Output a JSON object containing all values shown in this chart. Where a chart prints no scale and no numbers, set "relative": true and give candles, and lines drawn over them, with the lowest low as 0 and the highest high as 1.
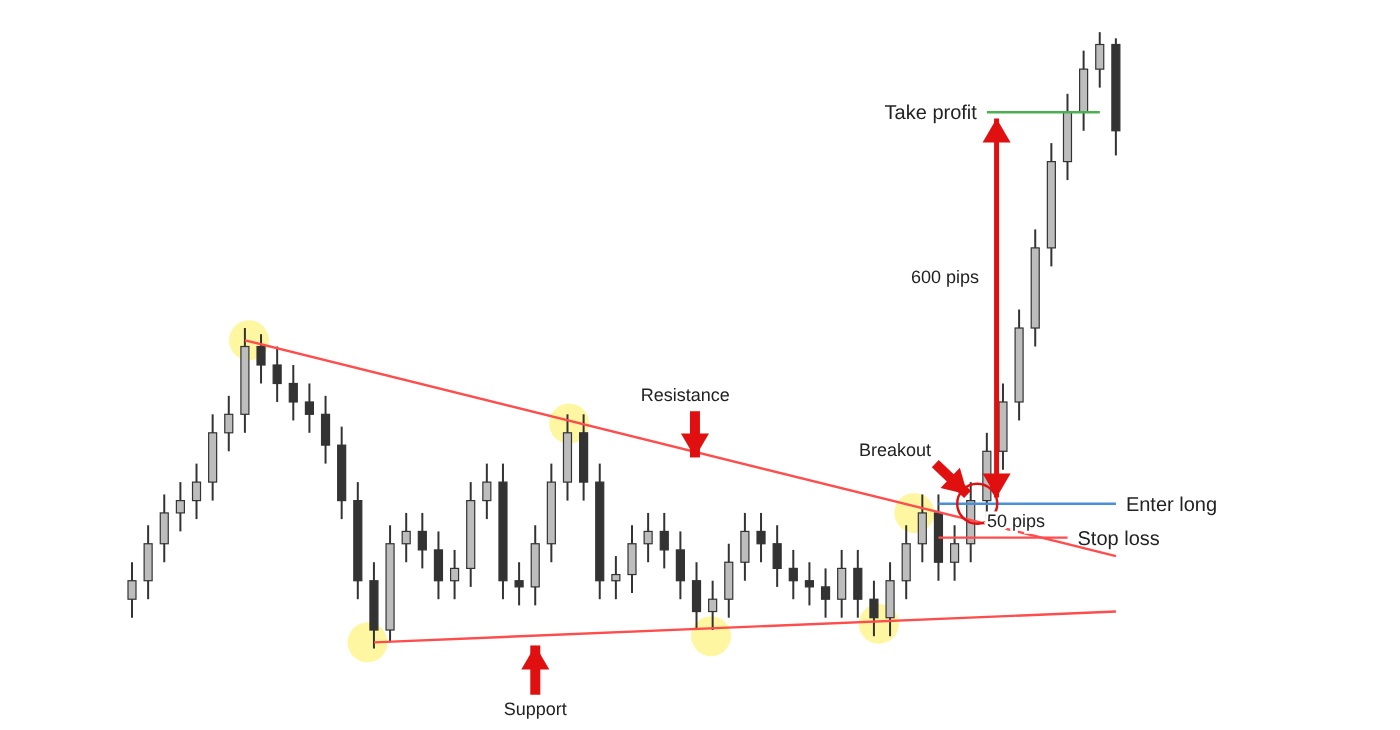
{
  "chart_data": {
    "type": "candlestick",
    "relative": true,
    "tick_labels": false,
    "color": "#333333",
    "categories": [
      null,
      null,
      null,
      null,
      null,
      null,
      null,
      null,
      null,
      null,
      null,
      null,
      null,
      null,
      null,
      null,
      null,
      null,
      null,
      null,
      null,
      null,
      null,
      null,
      null,
      null,
      null,
      null,
      null,
      null,
      null,
      null,
      null,
      null,
      null,
      null,
      null,
      null,
      null,
      null,
      null,
      null,
      null,
      null,
      null,
      null,
      null,
      null,
      null,
      null,
      null,
      null,
      null,
      null,
      null,
      null,
      null,
      null,
      null,
      null,
      null,
      null
    ],
    "ohlc": [
      [
        0.08,
        0.14,
        0.05,
        0.11
      ],
      [
        0.11,
        0.2,
        0.08,
        0.17
      ],
      [
        0.17,
        0.25,
        0.14,
        0.22
      ],
      [
        0.22,
        0.27,
        0.19,
        0.24
      ],
      [
        0.24,
        0.3,
        0.21,
        0.27
      ],
      [
        0.27,
        0.38,
        0.24,
        0.35
      ],
      [
        0.35,
        0.41,
        0.32,
        0.38
      ],
      [
        0.38,
        0.52,
        0.35,
        0.49
      ],
      [
        0.49,
        0.51,
        0.43,
        0.46
      ],
      [
        0.46,
        0.49,
        0.4,
        0.43
      ],
      [
        0.43,
        0.46,
        0.37,
        0.4
      ],
      [
        0.4,
        0.43,
        0.35,
        0.38
      ],
      [
        0.38,
        0.41,
        0.3,
        0.33
      ],
      [
        0.33,
        0.36,
        0.21,
        0.24
      ],
      [
        0.24,
        0.27,
        0.08,
        0.11
      ],
      [
        0.11,
        0.14,
        0,
        0.03
      ],
      [
        0.03,
        0.2,
        0.01,
        0.17
      ],
      [
        0.17,
        0.22,
        0.14,
        0.19
      ],
      [
        0.19,
        0.22,
        0.13,
        0.16
      ],
      [
        0.16,
        0.19,
        0.08,
        0.11
      ],
      [
        0.11,
        0.16,
        0.08,
        0.13
      ],
      [
        0.13,
        0.27,
        0.1,
        0.24
      ],
      [
        0.24,
        0.3,
        0.21,
        0.27
      ],
      [
        0.27,
        0.3,
        0.08,
        0.11
      ],
      [
        0.11,
        0.14,
        0.07,
        0.1
      ],
      [
        0.1,
        0.2,
        0.07,
        0.17
      ],
      [
        0.17,
        0.3,
        0.14,
        0.27
      ],
      [
        0.27,
        0.38,
        0.24,
        0.35
      ],
      [
        0.35,
        0.38,
        0.24,
        0.27
      ],
      [
        0.27,
        0.3,
        0.08,
        0.11
      ],
      [
        0.11,
        0.15,
        0.08,
        0.12
      ],
      [
        0.12,
        0.2,
        0.09,
        0.17
      ],
      [
        0.17,
        0.22,
        0.14,
        0.19
      ],
      [
        0.19,
        0.22,
        0.13,
        0.16
      ],
      [
        0.16,
        0.19,
        0.08,
        0.11
      ],
      [
        0.11,
        0.14,
        0.03,
        0.06
      ],
      [
        0.06,
        0.11,
        0.03,
        0.08
      ],
      [
        0.08,
        0.17,
        0.05,
        0.14
      ],
      [
        0.14,
        0.22,
        0.11,
        0.19
      ],
      [
        0.19,
        0.22,
        0.14,
        0.17
      ],
      [
        0.17,
        0.2,
        0.1,
        0.13
      ],
      [
        0.13,
        0.16,
        0.08,
        0.11
      ],
      [
        0.11,
        0.14,
        0.07,
        0.1
      ],
      [
        0.1,
        0.13,
        0.05,
        0.08
      ],
      [
        0.08,
        0.16,
        0.05,
        0.13
      ],
      [
        0.13,
        0.16,
        0.05,
        0.08
      ],
      [
        0.08,
        0.11,
        0.02,
        0.05
      ],
      [
        0.05,
        0.14,
        0.02,
        0.11
      ],
      [
        0.11,
        0.2,
        0.08,
        0.17
      ],
      [
        0.17,
        0.25,
        0.14,
        0.22
      ],
      [
        0.22,
        0.25,
        0.11,
        0.14
      ],
      [
        0.14,
        0.2,
        0.11,
        0.17
      ],
      [
        0.17,
        0.27,
        0.14,
        0.24
      ],
      [
        0.24,
        0.35,
        0.21,
        0.32
      ],
      [
        0.32,
        0.43,
        0.29,
        0.4
      ],
      [
        0.4,
        0.55,
        0.37,
        0.52
      ],
      [
        0.52,
        0.68,
        0.49,
        0.65
      ],
      [
        0.65,
        0.82,
        0.62,
        0.79
      ],
      [
        0.79,
        0.9,
        0.76,
        0.87
      ],
      [
        0.87,
        0.97,
        0.84,
        0.94
      ],
      [
        0.94,
        1,
        0.91,
        0.98
      ],
      [
        0.98,
        0.99,
        0.8,
        0.84
      ]
    ],
    "series": [
      {
        "type": "line",
        "color": "#ff4d4d",
        "values": [
          null,
          null,
          null,
          null,
          null,
          null,
          null,
          0.5,
          null,
          null,
          null,
          null,
          null,
          null,
          null,
          null,
          null,
          null,
          null,
          null,
          null,
          null,
          null,
          null,
          null,
          null,
          null,
          null,
          null,
          null,
          null,
          null,
          null,
          null,
          null,
          null,
          null,
          null,
          null,
          null,
          null,
          null,
          null,
          null,
          null,
          null,
          null,
          null,
          null,
          null,
          null,
          null,
          null,
          null,
          null,
          null,
          null,
          null,
          null,
          null,
          null,
          0.15
        ]
      },
      {
        "type": "line",
        "color": "#ff4d4d",
        "values": [
          null,
          null,
          null,
          null,
          null,
          null,
          null,
          null,
          null,
          null,
          null,
          null,
          null,
          null,
          null,
          0.01,
          null,
          null,
          null,
          null,
          null,
          null,
          null,
          null,
          null,
          null,
          null,
          null,
          null,
          null,
          null,
          null,
          null,
          null,
          null,
          null,
          null,
          null,
          null,
          null,
          null,
          null,
          null,
          null,
          null,
          null,
          null,
          null,
          null,
          null,
          null,
          null,
          null,
          null,
          null,
          null,
          null,
          null,
          null,
          null,
          null,
          0.06
        ]
      }
    ],
    "ref_lines": [
      {
        "axis": "y",
        "value": 0.87,
        "label": "Take profit",
        "color": "#4caf50"
      },
      {
        "axis": "y",
        "value": 0.235,
        "label": "Enter long",
        "color": "#4a90d9"
      },
      {
        "axis": "y",
        "value": 0.18,
        "label": "Stop loss",
        "color": "#ff4d4d"
      }
    ],
    "annotations": [
      "600 pips",
      "Breakout",
      "50 pips",
      "Resistance",
      "Support"
    ]
  }
}
